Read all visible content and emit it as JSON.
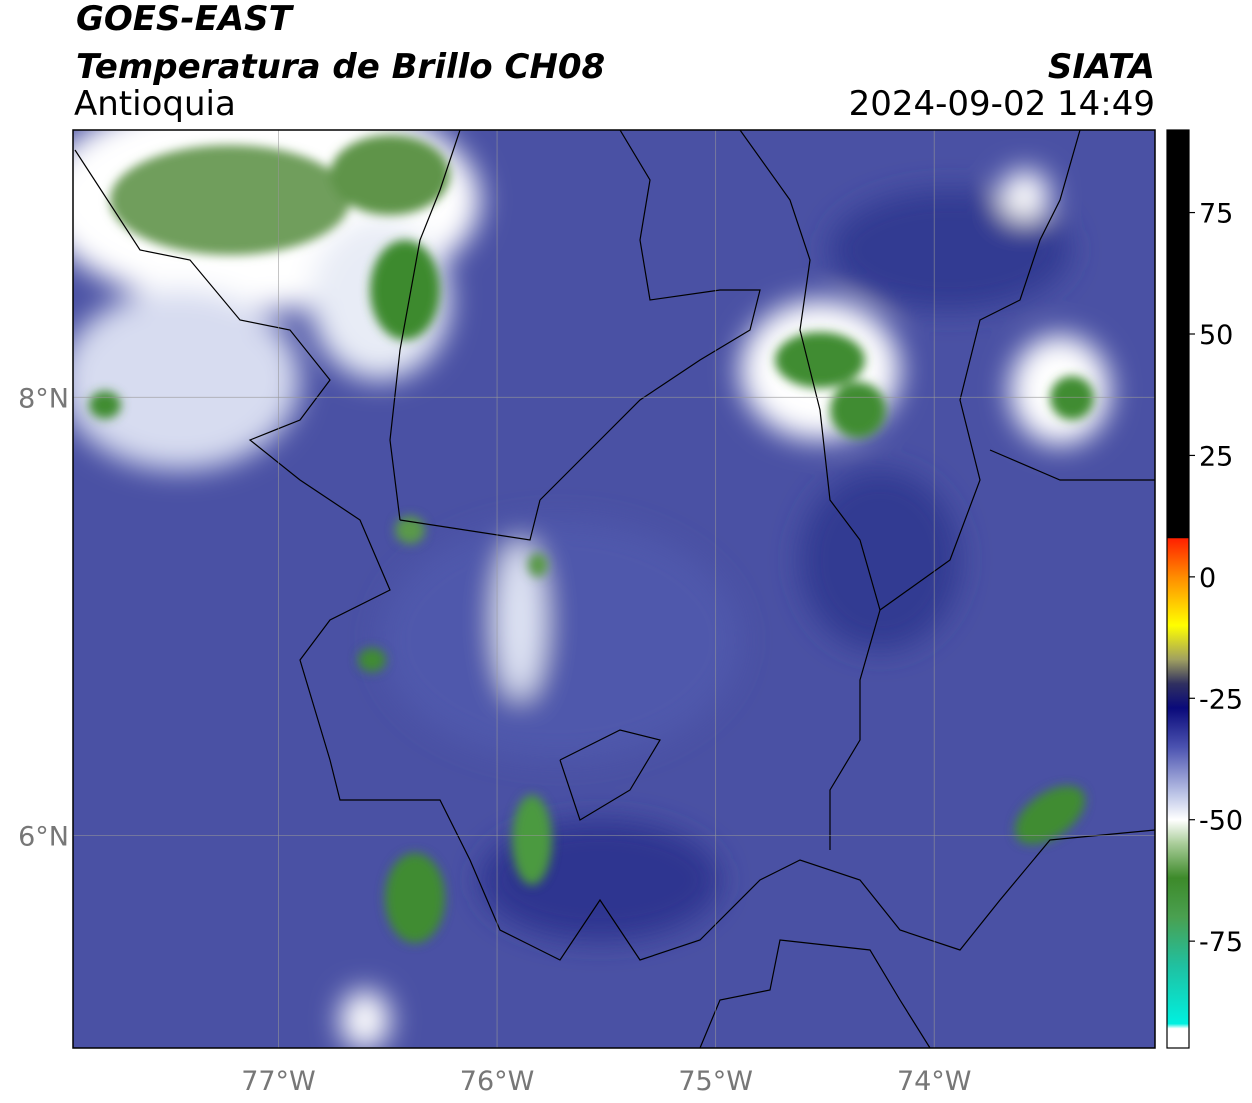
{
  "header": {
    "title": "GOES-EAST",
    "subtitle": "Temperatura de Brillo CH08",
    "region": "Antioquia",
    "source": "SIATA",
    "datetime": "2024-09-02 14:49"
  },
  "map": {
    "lonlim": [
      -77.94,
      -72.99
    ],
    "latlim": [
      5.03,
      9.22
    ],
    "lon_ticks": [
      {
        "value": -77,
        "label": "77°W"
      },
      {
        "value": -76,
        "label": "76°W"
      },
      {
        "value": -75,
        "label": "75°W"
      },
      {
        "value": -74,
        "label": "74°W"
      }
    ],
    "lat_ticks": [
      {
        "value": 8,
        "label": "8°N"
      },
      {
        "value": 6,
        "label": "6°N"
      }
    ],
    "grid": true
  },
  "colorbar": {
    "lim": [
      -97,
      92
    ],
    "ticks": [
      75,
      50,
      25,
      0,
      -25,
      -50,
      -75
    ],
    "stops": [
      {
        "value": 92,
        "color": "#000000"
      },
      {
        "value": 8,
        "color": "#000000"
      },
      {
        "value": 7.9,
        "color": "#ff2000"
      },
      {
        "value": 0,
        "color": "#ff8c00"
      },
      {
        "value": -10,
        "color": "#ffff00"
      },
      {
        "value": -17,
        "color": "#a0a060"
      },
      {
        "value": -22,
        "color": "#303060"
      },
      {
        "value": -27,
        "color": "#0a0a7a"
      },
      {
        "value": -35,
        "color": "#4b52b0"
      },
      {
        "value": -45,
        "color": "#c0c8e8"
      },
      {
        "value": -50,
        "color": "#ffffff"
      },
      {
        "value": -55,
        "color": "#a8cc98"
      },
      {
        "value": -62,
        "color": "#3d8a2a"
      },
      {
        "value": -70,
        "color": "#4aa050"
      },
      {
        "value": -80,
        "color": "#20c0a0"
      },
      {
        "value": -92,
        "color": "#00f0e0"
      },
      {
        "value": -93,
        "color": "#ffffff"
      },
      {
        "value": -97,
        "color": "#ffffff"
      }
    ]
  }
}
